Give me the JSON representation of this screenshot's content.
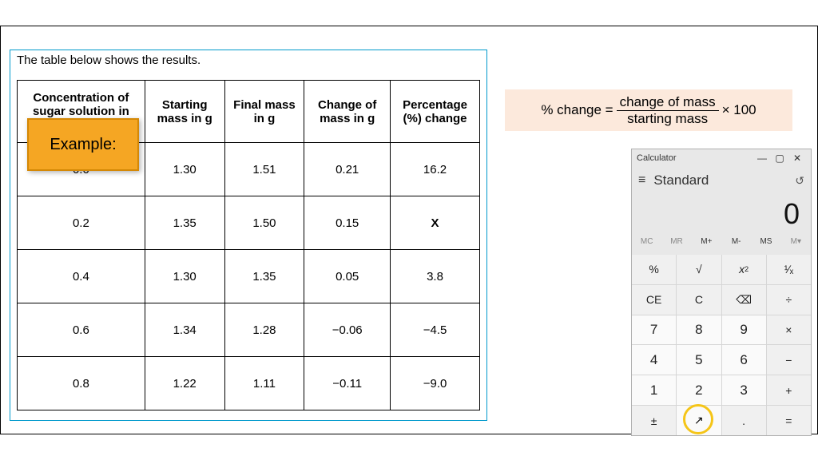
{
  "table": {
    "caption": "The table below shows the results.",
    "headers": [
      "Concentration of sugar solution in mol/dm³",
      "Starting mass in g",
      "Final mass in g",
      "Change of mass in g",
      "Percentage (%) change"
    ],
    "rows": [
      [
        "0.0",
        "1.30",
        "1.51",
        "0.21",
        "16.2"
      ],
      [
        "0.2",
        "1.35",
        "1.50",
        "0.15",
        "X"
      ],
      [
        "0.4",
        "1.30",
        "1.35",
        "0.05",
        "3.8"
      ],
      [
        "0.6",
        "1.34",
        "1.28",
        "−0.06",
        "−4.5"
      ],
      [
        "0.8",
        "1.22",
        "1.11",
        "−0.11",
        "−9.0"
      ]
    ],
    "border_color": "#0099cc",
    "header_fontweight": "bold"
  },
  "callout": {
    "text": "Example:",
    "bg_color": "#f5a623",
    "border_color": "#d48806"
  },
  "formula": {
    "lhs": "% change =",
    "numerator": "change of mass",
    "denominator": "starting mass",
    "rhs": "× 100",
    "bg_color": "#fce9dc"
  },
  "calculator": {
    "title": "Calculator",
    "mode": "Standard",
    "display": "0",
    "window_buttons": {
      "minimize": "—",
      "maximize": "▢",
      "close": "✕"
    },
    "memory_row": [
      "MC",
      "MR",
      "M+",
      "M-",
      "MS",
      "M▾"
    ],
    "memory_active": [
      false,
      false,
      true,
      true,
      true,
      false
    ],
    "buttons": [
      [
        "%",
        "√",
        "x²",
        "¹∕ₓ"
      ],
      [
        "CE",
        "C",
        "⌫",
        "÷"
      ],
      [
        "7",
        "8",
        "9",
        "×"
      ],
      [
        "4",
        "5",
        "6",
        "−"
      ],
      [
        "1",
        "2",
        "3",
        "+"
      ],
      [
        "±",
        "0",
        ".",
        "="
      ]
    ],
    "button_types": [
      [
        "func",
        "func",
        "func",
        "func"
      ],
      [
        "func",
        "func",
        "func",
        "func"
      ],
      [
        "num",
        "num",
        "num",
        "func"
      ],
      [
        "num",
        "num",
        "num",
        "func"
      ],
      [
        "num",
        "num",
        "num",
        "func"
      ],
      [
        "func",
        "num",
        "func",
        "func"
      ]
    ],
    "highlight_cell": [
      5,
      1
    ],
    "colors": {
      "window_bg": "#e8e8e8",
      "num_bg": "#fafafa",
      "func_bg": "#f0f0f0",
      "highlight": "#f5c518"
    }
  }
}
